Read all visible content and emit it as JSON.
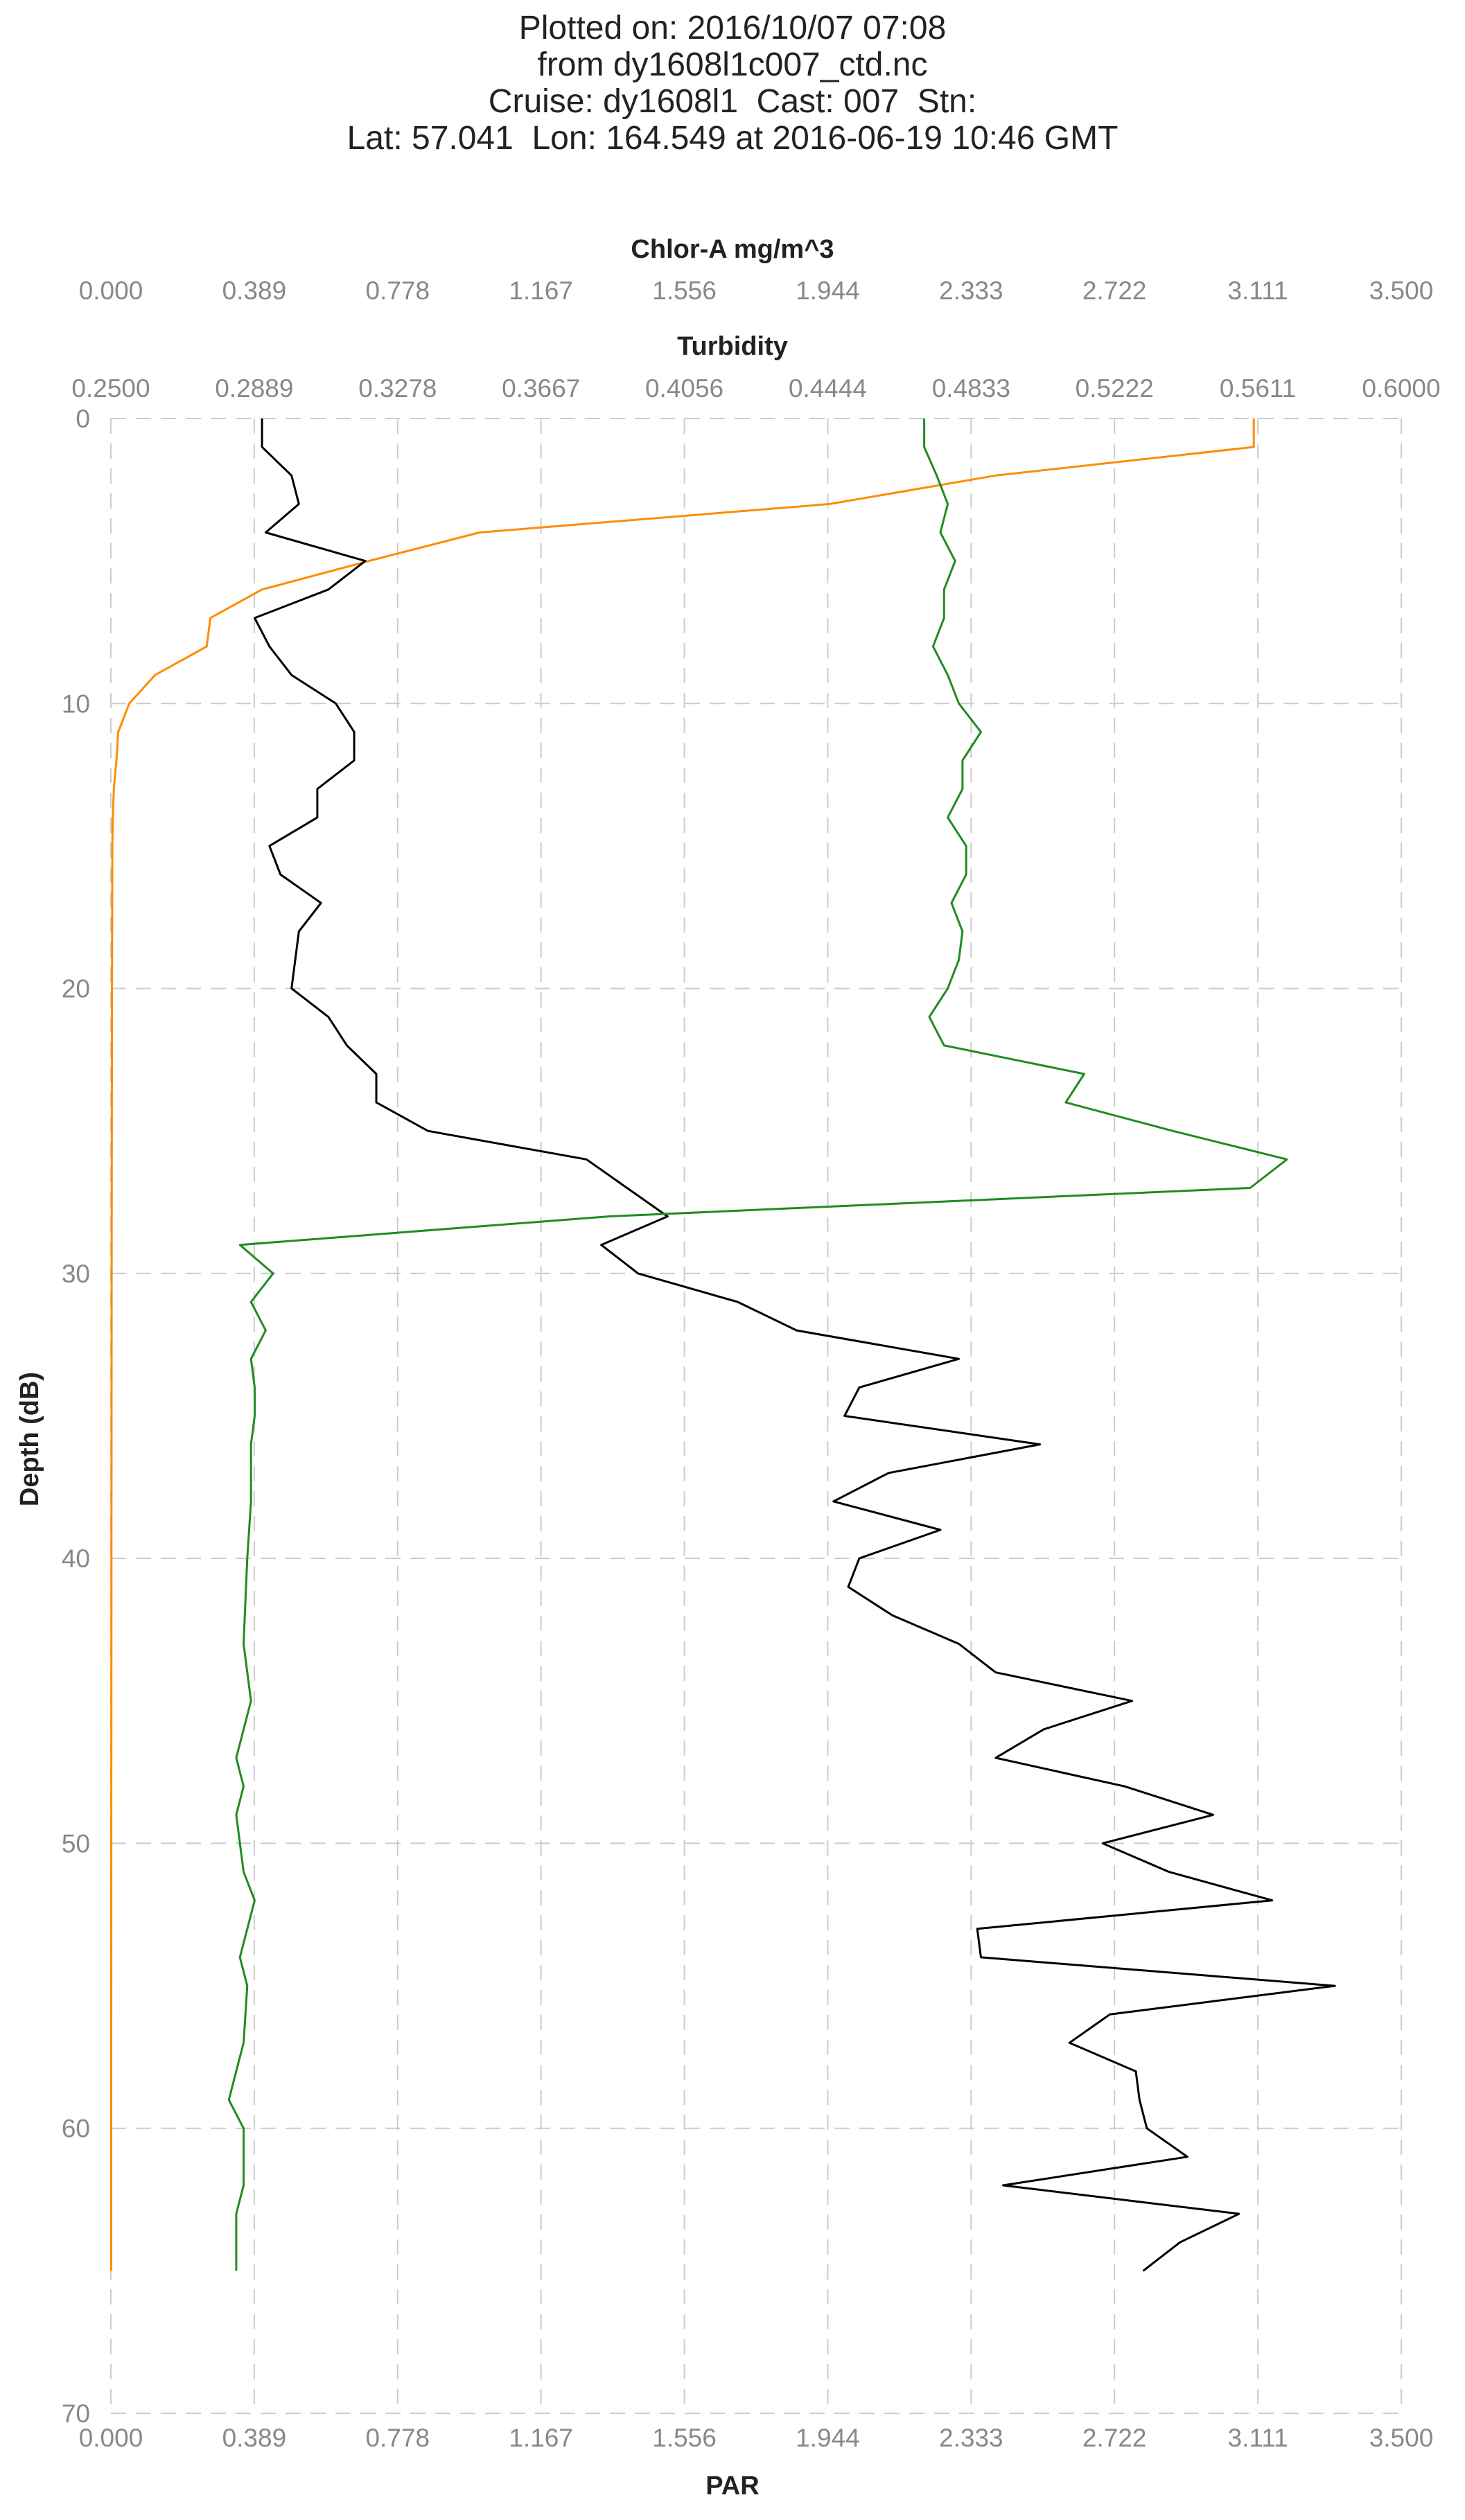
{
  "title_lines": [
    "Plotted on: 2016/10/07 07:08",
    "from dy1608l1c007_ctd.nc",
    "Cruise: dy1608l1  Cast: 007  Stn:",
    "Lat: 57.041  Lon: 164.549 at 2016-06-19 10:46 GMT"
  ],
  "chart_data": {
    "type": "line",
    "ylabel": "Depth (dB)",
    "ylim": [
      70,
      0
    ],
    "y_ticks": [
      "0",
      "10",
      "20",
      "30",
      "40",
      "50",
      "60",
      "70"
    ],
    "grid": true,
    "axes": {
      "chlor": {
        "label": "Chlor-A mg/m^3",
        "lim": [
          0.0,
          3.5
        ],
        "ticks": [
          "0.000",
          "0.389",
          "0.778",
          "1.167",
          "1.556",
          "1.944",
          "2.333",
          "2.722",
          "3.111",
          "3.500"
        ]
      },
      "turbidity": {
        "label": "Turbidity",
        "lim": [
          0.25,
          0.6
        ],
        "ticks": [
          "0.2500",
          "0.2889",
          "0.3278",
          "0.3667",
          "0.4056",
          "0.4444",
          "0.4833",
          "0.5222",
          "0.5611",
          "0.6000"
        ]
      },
      "par": {
        "label": "PAR",
        "lim": [
          0.0,
          3.5
        ],
        "ticks": [
          "0.000",
          "0.389",
          "0.778",
          "1.167",
          "1.556",
          "1.944",
          "2.333",
          "2.722",
          "3.111",
          "3.500"
        ]
      }
    },
    "series": [
      {
        "axis": "par",
        "color": "#ff8c00",
        "points": [
          [
            3.1,
            0
          ],
          [
            3.1,
            1
          ],
          [
            2.4,
            2
          ],
          [
            1.95,
            3
          ],
          [
            1.0,
            4
          ],
          [
            0.7,
            5
          ],
          [
            0.41,
            6
          ],
          [
            0.27,
            7
          ],
          [
            0.26,
            8
          ],
          [
            0.12,
            9
          ],
          [
            0.05,
            10
          ],
          [
            0.02,
            11
          ],
          [
            0.015,
            12
          ],
          [
            0.008,
            13
          ],
          [
            0.005,
            14
          ],
          [
            0.004,
            15
          ],
          [
            0.003,
            20
          ],
          [
            0.002,
            30
          ],
          [
            0.0015,
            40
          ],
          [
            0.0012,
            50
          ],
          [
            0.001,
            60
          ],
          [
            0.001,
            65
          ]
        ]
      },
      {
        "axis": "chlor",
        "color": "#000000",
        "points": [
          [
            0.41,
            0
          ],
          [
            0.41,
            1
          ],
          [
            0.49,
            2
          ],
          [
            0.51,
            3
          ],
          [
            0.42,
            4
          ],
          [
            0.69,
            5
          ],
          [
            0.59,
            6
          ],
          [
            0.39,
            7
          ],
          [
            0.43,
            8
          ],
          [
            0.49,
            9
          ],
          [
            0.61,
            10
          ],
          [
            0.66,
            11
          ],
          [
            0.66,
            12
          ],
          [
            0.56,
            13
          ],
          [
            0.56,
            14
          ],
          [
            0.43,
            15
          ],
          [
            0.46,
            16
          ],
          [
            0.57,
            17
          ],
          [
            0.51,
            18
          ],
          [
            0.5,
            19
          ],
          [
            0.49,
            20
          ],
          [
            0.59,
            21
          ],
          [
            0.64,
            22
          ],
          [
            0.72,
            23
          ],
          [
            0.72,
            24
          ],
          [
            0.86,
            25
          ],
          [
            1.29,
            26
          ],
          [
            1.4,
            27
          ],
          [
            1.51,
            28
          ],
          [
            1.33,
            29
          ],
          [
            1.43,
            30
          ],
          [
            1.7,
            31
          ],
          [
            1.86,
            32
          ],
          [
            2.3,
            33
          ],
          [
            2.03,
            34
          ],
          [
            1.99,
            35
          ],
          [
            2.52,
            36
          ],
          [
            2.11,
            37
          ],
          [
            1.96,
            38
          ],
          [
            2.25,
            39
          ],
          [
            2.03,
            40
          ],
          [
            2.0,
            41
          ],
          [
            2.12,
            42
          ],
          [
            2.3,
            43
          ],
          [
            2.4,
            44
          ],
          [
            2.77,
            45
          ],
          [
            2.53,
            46
          ],
          [
            2.4,
            47
          ],
          [
            2.75,
            48
          ],
          [
            2.99,
            49
          ],
          [
            2.69,
            50
          ],
          [
            2.87,
            51
          ],
          [
            3.15,
            52
          ],
          [
            2.35,
            53
          ],
          [
            2.36,
            54
          ],
          [
            3.32,
            55
          ],
          [
            2.71,
            56
          ],
          [
            2.6,
            57
          ],
          [
            2.78,
            58
          ],
          [
            2.79,
            59
          ],
          [
            2.81,
            60
          ],
          [
            2.92,
            61
          ],
          [
            2.42,
            62
          ],
          [
            3.06,
            63
          ],
          [
            2.9,
            64
          ],
          [
            2.8,
            65
          ]
        ]
      },
      {
        "axis": "turbidity",
        "color": "#228b22",
        "points": [
          [
            0.4706,
            0
          ],
          [
            0.4706,
            1
          ],
          [
            0.474,
            2
          ],
          [
            0.477,
            3
          ],
          [
            0.475,
            4
          ],
          [
            0.479,
            5
          ],
          [
            0.476,
            6
          ],
          [
            0.476,
            7
          ],
          [
            0.473,
            8
          ],
          [
            0.477,
            9
          ],
          [
            0.48,
            10
          ],
          [
            0.486,
            11
          ],
          [
            0.481,
            12
          ],
          [
            0.481,
            13
          ],
          [
            0.477,
            14
          ],
          [
            0.482,
            15
          ],
          [
            0.482,
            16
          ],
          [
            0.478,
            17
          ],
          [
            0.481,
            18
          ],
          [
            0.48,
            19
          ],
          [
            0.477,
            20
          ],
          [
            0.472,
            21
          ],
          [
            0.476,
            22
          ],
          [
            0.514,
            23
          ],
          [
            0.509,
            24
          ],
          [
            0.538,
            25
          ],
          [
            0.569,
            26
          ],
          [
            0.559,
            27
          ],
          [
            0.385,
            28
          ],
          [
            0.285,
            29
          ],
          [
            0.294,
            30
          ],
          [
            0.288,
            31
          ],
          [
            0.292,
            32
          ],
          [
            0.288,
            33
          ],
          [
            0.289,
            34
          ],
          [
            0.289,
            35
          ],
          [
            0.288,
            36
          ],
          [
            0.288,
            38
          ],
          [
            0.287,
            40
          ],
          [
            0.286,
            43
          ],
          [
            0.288,
            45
          ],
          [
            0.284,
            47
          ],
          [
            0.286,
            48
          ],
          [
            0.284,
            49
          ],
          [
            0.286,
            51
          ],
          [
            0.289,
            52
          ],
          [
            0.285,
            54
          ],
          [
            0.287,
            55
          ],
          [
            0.286,
            57
          ],
          [
            0.282,
            59
          ],
          [
            0.286,
            60
          ],
          [
            0.286,
            62
          ],
          [
            0.284,
            63
          ],
          [
            0.284,
            65
          ]
        ]
      }
    ]
  }
}
